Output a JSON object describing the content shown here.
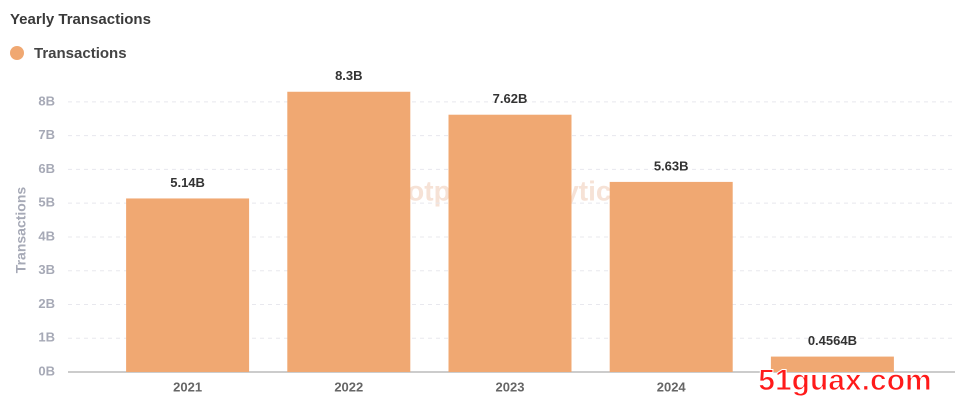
{
  "chart_data": {
    "type": "bar",
    "title": "Yearly Transactions",
    "y_label": "Transactions",
    "categories": [
      "2021",
      "2022",
      "2023",
      "2024",
      null
    ],
    "series": [
      {
        "name": "Transactions",
        "color": "#f0a872",
        "values": [
          5.14,
          8.3,
          7.62,
          5.63,
          0.4564
        ],
        "value_labels": [
          "5.14B",
          "8.3B",
          "7.62B",
          "5.63B",
          "0.4564B"
        ]
      }
    ],
    "ylim": [
      0,
      8.5
    ],
    "yticks": [
      {
        "value": 0,
        "label": "0B"
      },
      {
        "value": 1,
        "label": "1B"
      },
      {
        "value": 2,
        "label": "2B"
      },
      {
        "value": 3,
        "label": "3B"
      },
      {
        "value": 4,
        "label": "4B"
      },
      {
        "value": 5,
        "label": "5B"
      },
      {
        "value": 6,
        "label": "6B"
      },
      {
        "value": 7,
        "label": "7B"
      },
      {
        "value": 8,
        "label": "8B"
      }
    ],
    "grid": true,
    "watermark": "Footprint Analytics",
    "overlay_text": "51guax.com"
  }
}
